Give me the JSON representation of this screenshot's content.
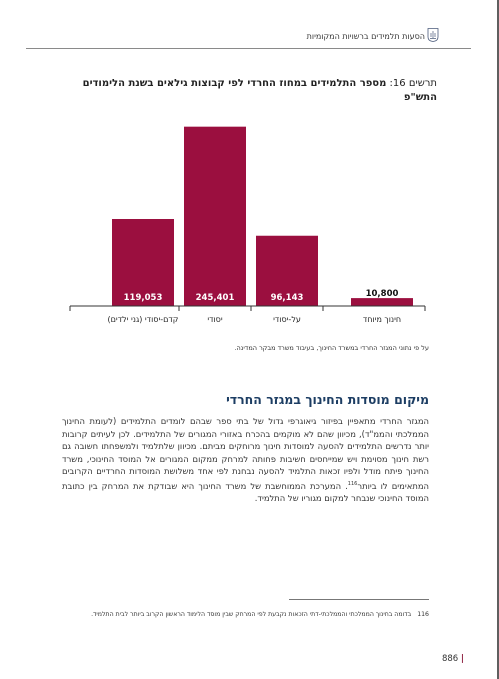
{
  "header": {
    "title": "הסעות תלמידים ברשויות המקומיות"
  },
  "chart_title": {
    "number": "תרשים 16:",
    "text": "מספר התלמידים במחוז החרדי לפי קבוצות גילאים בשנת הלימודים התש\"פ"
  },
  "chart_data": {
    "type": "bar",
    "categories": [
      "קדם-יסודי (גני ילדים)",
      "יסודי",
      "על-יסודי",
      "חינוך מיוחד"
    ],
    "values": [
      119053,
      245401,
      96143,
      10800
    ],
    "value_labels": [
      "119,053",
      "245,401",
      "96,143",
      "10,800"
    ],
    "bar_color": "#9b0f3f",
    "ylim": [
      0,
      260000
    ],
    "grid": false,
    "legend": "none"
  },
  "source_note": "על פי נתוני המגזר החרדי במשרד החינוך, בעיבוד משרד מבקר המדינה.",
  "section_heading": "מיקום מוסדות החינוך במגזר החרדי",
  "body_paragraph_before_ref": "המגזר החרדי מתאפיין בפיזור גיאוגרפי גדול של בתי ספר שבהם לומדים התלמידים (לעומת החינוך הממלכתי והממ\"ד), מכיוון שהם לא מוקמים בהכרח באזורי המגורים של התלמידים. לכן לעיתים קרובות יותר נדרשים התלמידים להסעה למוסדות חינוך מרוחקים מביתם. מכיוון שלתלמיד ולמשפחתו חשובה גם רשת חינוך מסוימת ויש שמייחסים חשיבות פחותה למרחק ממקום המגורים אל המוסד החינוכי, משרד החינוך פיתח מודל ולפיו זכאות התלמיד להסעה נבחנת לפי אחד משלושת המוסדות החרדיים הקרובים המתאימים לו ביותר",
  "body_ref": "116",
  "body_paragraph_after_ref": ". המערכת הממוחשבת של משרד החינוך היא שבודקת את המרחק בין כתובת המוסד החינוכי שנבחר למקום מגוריו של התלמיד.",
  "footnote": {
    "number": "116",
    "text": "בדומה בחינוך הממלכתי והממלכתי-דתי הזכאות נקבעת לפי המרחק שבין מוסד הלימוד הראשון הקרוב ביותר לבית התלמיד."
  },
  "page_number": "886",
  "page_number_sep": "|"
}
